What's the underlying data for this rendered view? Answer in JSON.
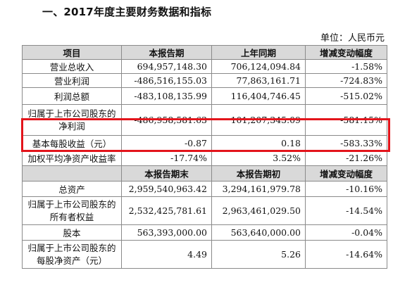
{
  "heading": "一、2017年度主要财务数据和指标",
  "unit": "单位：人民币元",
  "table1": {
    "headers": [
      "项目",
      "本报告期",
      "上年同期",
      "增减变动幅度"
    ],
    "rows": [
      {
        "item": "营业总收入",
        "current": "694,957,148.30",
        "prior": "706,124,094.84",
        "change": "-1.58%"
      },
      {
        "item": "营业利润",
        "current": "-486,516,155.03",
        "prior": "77,863,161.71",
        "change": "-724.83%"
      },
      {
        "item": "利润总额",
        "current": "-483,108,135.99",
        "prior": "116,404,746.45",
        "change": "-515.02%"
      },
      {
        "item_line1": "归属于上市公司股东的",
        "item_line2": "净利润",
        "current": "-486,958,581.63",
        "prior": "101,207,345.09",
        "change": "-581.15%"
      },
      {
        "item": "基本每股收益（元）",
        "current": "-0.87",
        "prior": "0.18",
        "change": "-583.33%"
      },
      {
        "item": "加权平均净资产收益率",
        "current": "-17.74%",
        "prior": "3.52%",
        "change": "-21.26%"
      }
    ]
  },
  "table2": {
    "headers": [
      "",
      "本报告期末",
      "本报告期初",
      "增减变动幅度"
    ],
    "rows": [
      {
        "item": "总资产",
        "current": "2,959,540,963.42",
        "prior": "3,294,161,979.78",
        "change": "-10.16%"
      },
      {
        "item_line1": "归属于上市公司股东的",
        "item_line2": "所有者权益",
        "current": "2,532,425,781.61",
        "prior": "2,963,461,029.50",
        "change": "-14.54%"
      },
      {
        "item": "股本",
        "current": "563,393,000.00",
        "prior": "563,640,000.00",
        "change": "-0.04%"
      },
      {
        "item_line1": "归属于上市公司股东的",
        "item_line2": "每股净资产（元）",
        "current": "4.49",
        "prior": "5.26",
        "change": "-14.64%"
      }
    ]
  },
  "highlight_color": "#e3141b"
}
